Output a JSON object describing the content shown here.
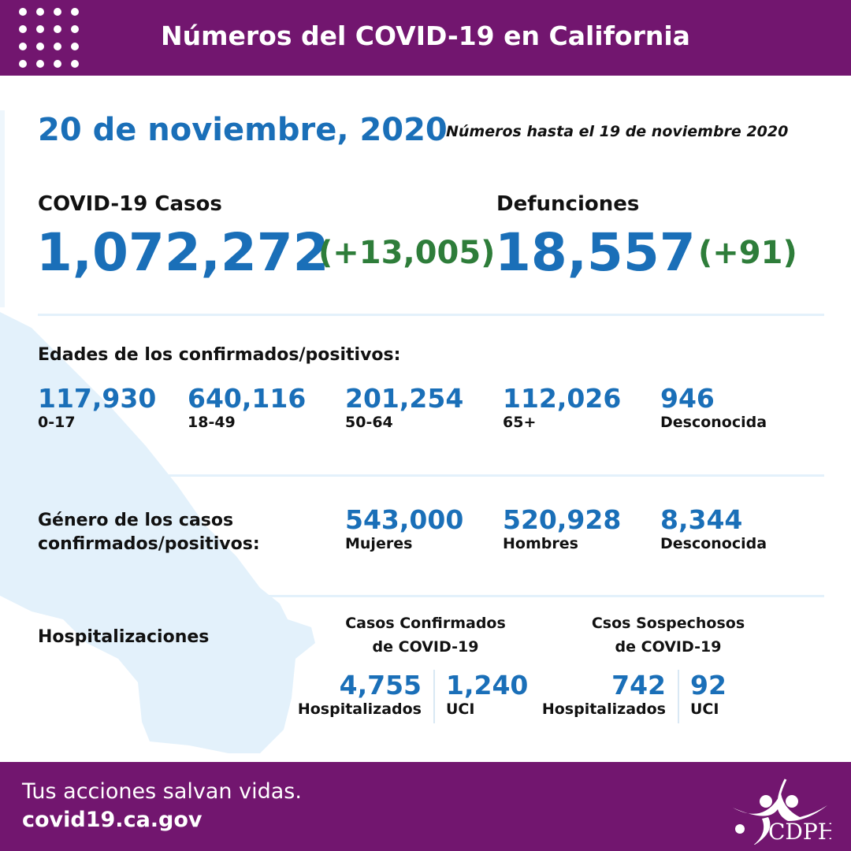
{
  "header": {
    "title": "Números del COVID-19 en California"
  },
  "date": "20 de noviembre, 2020",
  "as_of": "Números hasta el 19 de noviembre 2020",
  "cases": {
    "label": "COVID-19 Casos",
    "total": "1,072,272",
    "change": "(+13,005)"
  },
  "deaths": {
    "label": "Defunciones",
    "total": "18,557",
    "change": "(+91)"
  },
  "ages": {
    "label": "Edades de los confirmados/positivos:",
    "items": [
      {
        "value": "117,930",
        "group": "0-17"
      },
      {
        "value": "640,116",
        "group": "18-49"
      },
      {
        "value": "201,254",
        "group": "50-64"
      },
      {
        "value": "112,026",
        "group": "65+"
      },
      {
        "value": "946",
        "group": "Desconocida"
      }
    ]
  },
  "gender": {
    "label_line1": "Género de los casos",
    "label_line2": "confirmados/positivos:",
    "items": [
      {
        "value": "543,000",
        "group": "Mujeres"
      },
      {
        "value": "520,928",
        "group": "Hombres"
      },
      {
        "value": "8,344",
        "group": "Desconocida"
      }
    ]
  },
  "hosp": {
    "label": "Hospitalizaciones",
    "confirmed": {
      "title1": "Casos Confirmados",
      "title2": "de COVID-19",
      "hosp_value": "4,755",
      "hosp_label": "Hospitalizados",
      "icu_value": "1,240",
      "icu_label": "UCI"
    },
    "suspected": {
      "title1": "Csos Sospechosos",
      "title2": "de COVID-19",
      "hosp_value": "742",
      "hosp_label": "Hospitalizados",
      "icu_value": "92",
      "icu_label": "UCI"
    }
  },
  "footer": {
    "tagline": "Tus acciones salvan vidas.",
    "url": "covid19.ca.gov",
    "logo_text": "CDPH"
  },
  "colors": {
    "purple": "#72166f",
    "blue": "#1a6fb8",
    "green": "#2e7d3a",
    "map": "#e3f1fb"
  }
}
